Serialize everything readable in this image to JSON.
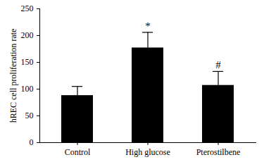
{
  "chart_data": {
    "type": "bar",
    "y_label": "hREC cell proliferation rate",
    "categories": [
      "Control",
      "High glucose",
      "Pterostilbene"
    ],
    "values": [
      88,
      177,
      107
    ],
    "errors": [
      17,
      29,
      26
    ],
    "significance": [
      null,
      "*",
      "#"
    ],
    "color": "#000000",
    "ylim": [
      0,
      250
    ],
    "yticks": [
      0,
      50,
      100,
      150,
      200,
      250
    ],
    "grid": false
  }
}
